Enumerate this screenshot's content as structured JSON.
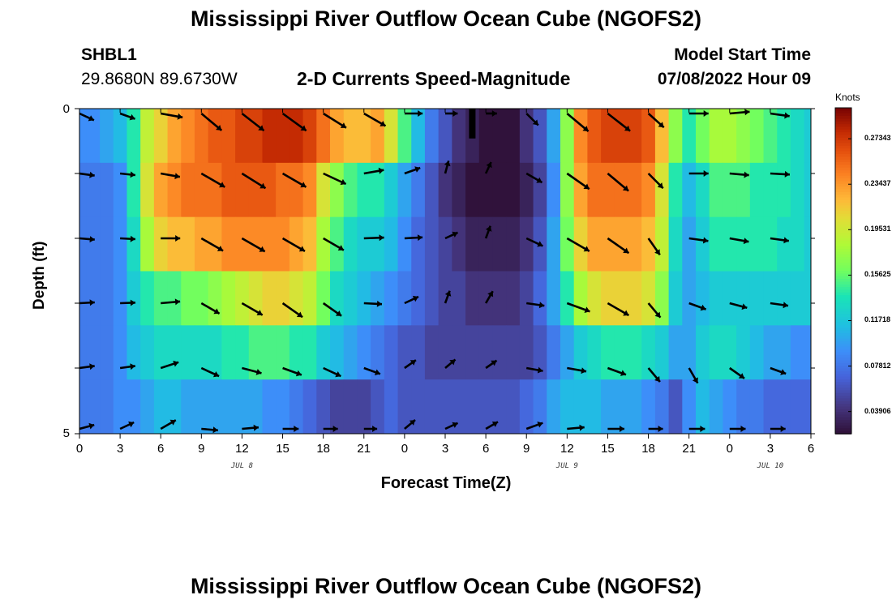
{
  "titles": {
    "main": "Mississippi River Outflow Ocean Cube (NGOFS2)",
    "repeat": "Mississippi River Outflow Ocean Cube (NGOFS2)"
  },
  "station": {
    "id": "SHBL1",
    "coords": "29.8680N  89.6730W"
  },
  "model": {
    "label": "Model Start Time",
    "start": "07/08/2022 Hour 09"
  },
  "chart_data": {
    "type": "heatmap",
    "title": "2-D Currents Speed-Magnitude",
    "xlabel": "Forecast Time(Z)",
    "ylabel": "Depth (ft)",
    "x_ticks": [
      "0",
      "3",
      "6",
      "9",
      "12",
      "15",
      "18",
      "21",
      "0",
      "3",
      "6",
      "9",
      "12",
      "15",
      "18",
      "21",
      "0",
      "3",
      "6"
    ],
    "y_ticks": [
      "0",
      "5"
    ],
    "date_labels": [
      {
        "label": "JUL 8",
        "hour": 12
      },
      {
        "label": "JUL 9",
        "hour": 36
      },
      {
        "label": "JUL 10",
        "hour": 51
      }
    ],
    "x_hours": [
      0,
      1,
      2,
      3,
      4,
      5,
      6,
      7,
      8,
      9,
      10,
      11,
      12,
      13,
      14,
      15,
      16,
      17,
      18,
      19,
      20,
      21,
      22,
      23,
      24,
      25,
      26,
      27,
      28,
      29,
      30,
      31,
      32,
      33,
      34,
      35,
      36,
      37,
      38,
      39,
      40,
      41,
      42,
      43,
      44,
      45,
      46,
      47,
      48,
      49,
      50,
      51,
      52,
      53,
      54
    ],
    "depth_rows": [
      "0.0",
      "1.0",
      "2.0",
      "3.0",
      "4.0",
      "5.0"
    ],
    "speed_knots": [
      [
        0.09,
        0.09,
        0.1,
        0.11,
        0.14,
        0.19,
        0.21,
        0.23,
        0.24,
        0.25,
        0.26,
        0.26,
        0.27,
        0.27,
        0.28,
        0.28,
        0.28,
        0.27,
        0.25,
        0.23,
        0.22,
        0.22,
        0.23,
        0.2,
        0.15,
        0.11,
        0.08,
        0.06,
        0.04,
        0.03,
        0.02,
        0.02,
        0.02,
        0.04,
        0.06,
        0.1,
        0.17,
        0.24,
        0.26,
        0.27,
        0.27,
        0.27,
        0.26,
        0.22,
        0.17,
        0.14,
        0.16,
        0.18,
        0.18,
        0.17,
        0.16,
        0.15,
        0.14,
        0.13,
        0.12
      ],
      [
        0.08,
        0.08,
        0.08,
        0.09,
        0.14,
        0.2,
        0.23,
        0.24,
        0.25,
        0.25,
        0.25,
        0.26,
        0.26,
        0.26,
        0.26,
        0.25,
        0.25,
        0.24,
        0.2,
        0.17,
        0.15,
        0.14,
        0.14,
        0.12,
        0.1,
        0.08,
        0.06,
        0.04,
        0.03,
        0.02,
        0.02,
        0.02,
        0.02,
        0.03,
        0.05,
        0.09,
        0.17,
        0.23,
        0.25,
        0.25,
        0.25,
        0.25,
        0.24,
        0.2,
        0.14,
        0.11,
        0.13,
        0.15,
        0.15,
        0.15,
        0.14,
        0.14,
        0.14,
        0.13,
        0.12
      ],
      [
        0.08,
        0.08,
        0.08,
        0.09,
        0.13,
        0.18,
        0.21,
        0.22,
        0.22,
        0.23,
        0.23,
        0.24,
        0.24,
        0.24,
        0.24,
        0.24,
        0.23,
        0.22,
        0.18,
        0.15,
        0.13,
        0.12,
        0.12,
        0.11,
        0.09,
        0.07,
        0.06,
        0.05,
        0.04,
        0.03,
        0.03,
        0.03,
        0.03,
        0.04,
        0.06,
        0.1,
        0.16,
        0.21,
        0.23,
        0.23,
        0.23,
        0.23,
        0.22,
        0.19,
        0.13,
        0.1,
        0.12,
        0.14,
        0.14,
        0.14,
        0.14,
        0.14,
        0.13,
        0.13,
        0.12
      ],
      [
        0.08,
        0.08,
        0.08,
        0.09,
        0.12,
        0.14,
        0.15,
        0.15,
        0.16,
        0.16,
        0.17,
        0.18,
        0.19,
        0.2,
        0.21,
        0.21,
        0.2,
        0.19,
        0.16,
        0.13,
        0.12,
        0.11,
        0.1,
        0.09,
        0.08,
        0.07,
        0.06,
        0.05,
        0.05,
        0.04,
        0.04,
        0.04,
        0.04,
        0.05,
        0.07,
        0.1,
        0.14,
        0.18,
        0.2,
        0.21,
        0.21,
        0.21,
        0.2,
        0.17,
        0.12,
        0.1,
        0.11,
        0.12,
        0.12,
        0.12,
        0.12,
        0.12,
        0.12,
        0.12,
        0.12
      ],
      [
        0.08,
        0.08,
        0.08,
        0.09,
        0.11,
        0.12,
        0.13,
        0.13,
        0.13,
        0.13,
        0.13,
        0.14,
        0.14,
        0.15,
        0.15,
        0.15,
        0.14,
        0.14,
        0.12,
        0.11,
        0.1,
        0.09,
        0.08,
        0.07,
        0.06,
        0.06,
        0.05,
        0.05,
        0.05,
        0.05,
        0.05,
        0.05,
        0.05,
        0.05,
        0.06,
        0.08,
        0.1,
        0.12,
        0.13,
        0.14,
        0.14,
        0.14,
        0.13,
        0.12,
        0.1,
        0.1,
        0.12,
        0.13,
        0.13,
        0.12,
        0.11,
        0.1,
        0.1,
        0.09,
        0.09
      ],
      [
        0.08,
        0.08,
        0.08,
        0.09,
        0.09,
        0.1,
        0.11,
        0.11,
        0.1,
        0.1,
        0.1,
        0.1,
        0.1,
        0.1,
        0.09,
        0.09,
        0.08,
        0.07,
        0.06,
        0.05,
        0.05,
        0.05,
        0.06,
        0.07,
        0.06,
        0.06,
        0.06,
        0.06,
        0.06,
        0.06,
        0.06,
        0.06,
        0.06,
        0.07,
        0.08,
        0.1,
        0.11,
        0.11,
        0.11,
        0.1,
        0.1,
        0.1,
        0.09,
        0.08,
        0.06,
        0.09,
        0.11,
        0.1,
        0.09,
        0.08,
        0.08,
        0.07,
        0.07,
        0.07,
        0.07
      ]
    ],
    "vectors": {
      "hours": [
        0,
        3,
        6,
        9,
        12,
        15,
        18,
        21,
        24,
        27,
        30,
        33,
        36,
        39,
        42,
        45,
        48,
        51,
        54
      ],
      "rows": [
        [
          [
            0.09,
            -25
          ],
          [
            0.09,
            -20
          ],
          [
            0.18,
            -10
          ],
          [
            0.24,
            -40
          ],
          [
            0.26,
            -38
          ],
          [
            0.28,
            -36
          ],
          [
            0.25,
            -32
          ],
          [
            0.22,
            -30
          ],
          [
            0.12,
            0
          ],
          [
            0.04,
            0
          ],
          [
            0.02,
            0
          ],
          [
            0.1,
            -45
          ],
          [
            0.26,
            -40
          ],
          [
            0.27,
            -38
          ],
          [
            0.16,
            -42
          ],
          [
            0.14,
            0
          ],
          [
            0.15,
            5
          ],
          [
            0.14,
            -8
          ],
          [
            0.12,
            0
          ]
        ],
        [
          [
            0.08,
            -8
          ],
          [
            0.08,
            -6
          ],
          [
            0.14,
            -10
          ],
          [
            0.25,
            -30
          ],
          [
            0.26,
            -32
          ],
          [
            0.25,
            -30
          ],
          [
            0.22,
            -25
          ],
          [
            0.15,
            10
          ],
          [
            0.1,
            20
          ],
          [
            0.05,
            75
          ],
          [
            0.04,
            65
          ],
          [
            0.12,
            -30
          ],
          [
            0.25,
            -35
          ],
          [
            0.25,
            -40
          ],
          [
            0.16,
            -45
          ],
          [
            0.14,
            0
          ],
          [
            0.14,
            -5
          ],
          [
            0.14,
            -3
          ],
          [
            0.12,
            -3
          ]
        ],
        [
          [
            0.08,
            -5
          ],
          [
            0.08,
            -3
          ],
          [
            0.14,
            0
          ],
          [
            0.22,
            -30
          ],
          [
            0.24,
            -30
          ],
          [
            0.23,
            -30
          ],
          [
            0.2,
            -30
          ],
          [
            0.15,
            2
          ],
          [
            0.12,
            3
          ],
          [
            0.06,
            25
          ],
          [
            0.05,
            70
          ],
          [
            0.12,
            -25
          ],
          [
            0.23,
            -30
          ],
          [
            0.23,
            -35
          ],
          [
            0.15,
            -55
          ],
          [
            0.14,
            -8
          ],
          [
            0.14,
            -10
          ],
          [
            0.13,
            -8
          ],
          [
            0.12,
            -5
          ]
        ],
        [
          [
            0.08,
            3
          ],
          [
            0.08,
            2
          ],
          [
            0.14,
            5
          ],
          [
            0.16,
            -30
          ],
          [
            0.2,
            -30
          ],
          [
            0.21,
            -35
          ],
          [
            0.18,
            -35
          ],
          [
            0.12,
            -3
          ],
          [
            0.08,
            25
          ],
          [
            0.05,
            70
          ],
          [
            0.06,
            60
          ],
          [
            0.12,
            -8
          ],
          [
            0.21,
            -20
          ],
          [
            0.21,
            -30
          ],
          [
            0.13,
            -50
          ],
          [
            0.12,
            -20
          ],
          [
            0.12,
            -15
          ],
          [
            0.12,
            -8
          ],
          [
            0.12,
            -3
          ]
        ],
        [
          [
            0.08,
            8
          ],
          [
            0.08,
            8
          ],
          [
            0.13,
            18
          ],
          [
            0.14,
            -25
          ],
          [
            0.15,
            -15
          ],
          [
            0.15,
            -20
          ],
          [
            0.14,
            -25
          ],
          [
            0.11,
            -20
          ],
          [
            0.06,
            35
          ],
          [
            0.05,
            40
          ],
          [
            0.05,
            35
          ],
          [
            0.1,
            -10
          ],
          [
            0.14,
            -10
          ],
          [
            0.14,
            -20
          ],
          [
            0.12,
            -50
          ],
          [
            0.11,
            -60
          ],
          [
            0.12,
            -35
          ],
          [
            0.1,
            -20
          ],
          [
            0.09,
            -10
          ]
        ],
        [
          [
            0.08,
            15
          ],
          [
            0.08,
            25
          ],
          [
            0.11,
            30
          ],
          [
            0.1,
            -5
          ],
          [
            0.1,
            5
          ],
          [
            0.09,
            0
          ],
          [
            0.07,
            0
          ],
          [
            0.05,
            0
          ],
          [
            0.06,
            40
          ],
          [
            0.06,
            25
          ],
          [
            0.06,
            30
          ],
          [
            0.11,
            20
          ],
          [
            0.11,
            5
          ],
          [
            0.1,
            0
          ],
          [
            0.07,
            0
          ],
          [
            0.09,
            0
          ],
          [
            0.09,
            0
          ],
          [
            0.08,
            0
          ],
          [
            0.07,
            0
          ]
        ]
      ]
    },
    "colorbar": {
      "label": "Knots",
      "min": 0.02,
      "max": 0.3,
      "ticks": [
        "0.27343",
        "0.23437",
        "0.19531",
        "0.15625",
        "0.11718",
        "0.07812",
        "0.03906"
      ],
      "tick_values": [
        0.27343,
        0.23437,
        0.19531,
        0.15625,
        0.11718,
        0.07812,
        0.03906
      ]
    },
    "marker": {
      "hour": 29,
      "row": 0,
      "color": "#000000"
    }
  }
}
